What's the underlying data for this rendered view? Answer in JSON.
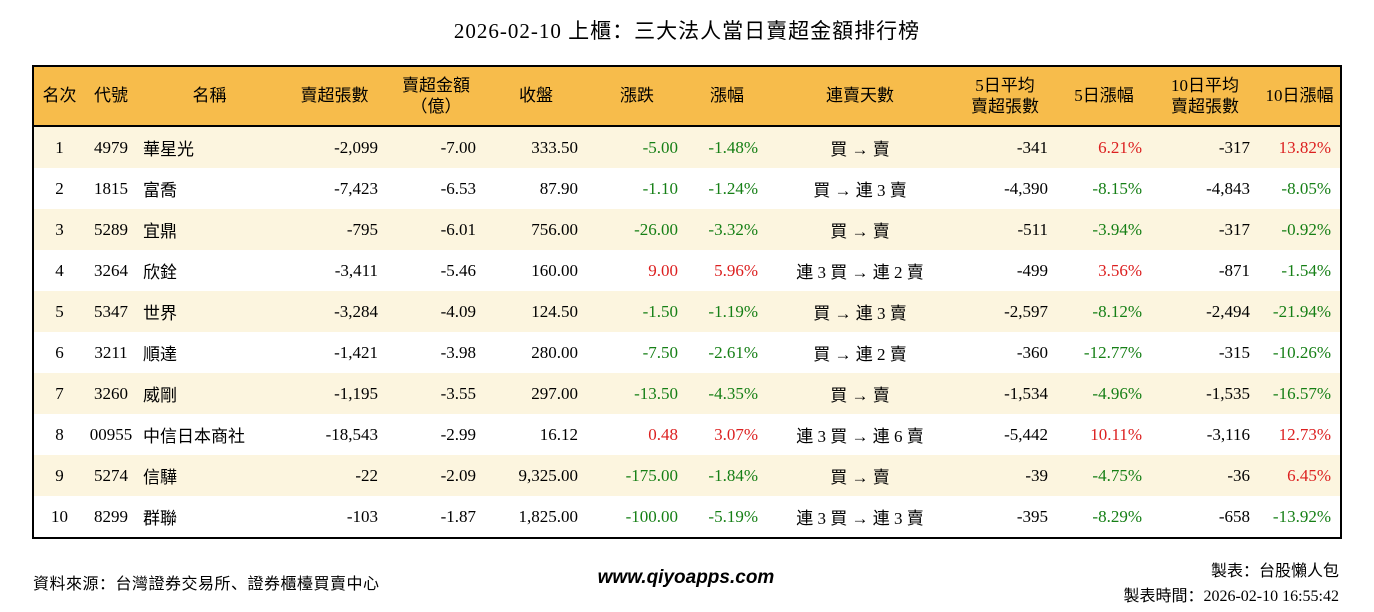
{
  "title": "2026-02-10 上櫃：三大法人當日賣超金額排行榜",
  "colors": {
    "header_bg": "#F7BC4B",
    "row_stripe": "#FCF5DF",
    "up_red": "#DC1F1F",
    "down_green": "#157F15",
    "border": "#000000"
  },
  "chart_data": {
    "type": "table",
    "title": "2026-02-10 上櫃：三大法人當日賣超金額排行榜",
    "columns": [
      "名次",
      "代號",
      "名稱",
      "賣超張數",
      "賣超金額\n（億）",
      "收盤",
      "漲跌",
      "漲幅",
      "連賣天數",
      "5日平均\n賣超張數",
      "5日漲幅",
      "10日平均\n賣超張數",
      "10日漲幅"
    ],
    "column_keys": [
      "rank",
      "code",
      "name",
      "net-sell-volume",
      "net-sell-amount",
      "close",
      "change",
      "change-pct",
      "streak",
      "avg5-net-sell-volume",
      "pct5",
      "avg10-net-sell-volume",
      "pct10"
    ],
    "aligns": [
      "center",
      "center",
      "left",
      "right",
      "right",
      "right",
      "right",
      "right",
      "center",
      "right",
      "right",
      "right",
      "right"
    ],
    "rows": [
      [
        {
          "t": "1",
          "c": "k"
        },
        {
          "t": "4979",
          "c": "k"
        },
        {
          "t": "華星光",
          "c": "k"
        },
        {
          "t": "-2,099",
          "c": "k"
        },
        {
          "t": "-7.00",
          "c": "k"
        },
        {
          "t": "333.50",
          "c": "k"
        },
        {
          "t": "-5.00",
          "c": "g"
        },
        {
          "t": "-1.48%",
          "c": "g"
        },
        {
          "t": "買 → 賣",
          "c": "k"
        },
        {
          "t": "-341",
          "c": "k"
        },
        {
          "t": "6.21%",
          "c": "r"
        },
        {
          "t": "-317",
          "c": "k"
        },
        {
          "t": "13.82%",
          "c": "r"
        }
      ],
      [
        {
          "t": "2",
          "c": "k"
        },
        {
          "t": "1815",
          "c": "k"
        },
        {
          "t": "富喬",
          "c": "k"
        },
        {
          "t": "-7,423",
          "c": "k"
        },
        {
          "t": "-6.53",
          "c": "k"
        },
        {
          "t": "87.90",
          "c": "k"
        },
        {
          "t": "-1.10",
          "c": "g"
        },
        {
          "t": "-1.24%",
          "c": "g"
        },
        {
          "t": "買 → 連 3 賣",
          "c": "k"
        },
        {
          "t": "-4,390",
          "c": "k"
        },
        {
          "t": "-8.15%",
          "c": "g"
        },
        {
          "t": "-4,843",
          "c": "k"
        },
        {
          "t": "-8.05%",
          "c": "g"
        }
      ],
      [
        {
          "t": "3",
          "c": "k"
        },
        {
          "t": "5289",
          "c": "k"
        },
        {
          "t": "宜鼎",
          "c": "k"
        },
        {
          "t": "-795",
          "c": "k"
        },
        {
          "t": "-6.01",
          "c": "k"
        },
        {
          "t": "756.00",
          "c": "k"
        },
        {
          "t": "-26.00",
          "c": "g"
        },
        {
          "t": "-3.32%",
          "c": "g"
        },
        {
          "t": "買 → 賣",
          "c": "k"
        },
        {
          "t": "-511",
          "c": "k"
        },
        {
          "t": "-3.94%",
          "c": "g"
        },
        {
          "t": "-317",
          "c": "k"
        },
        {
          "t": "-0.92%",
          "c": "g"
        }
      ],
      [
        {
          "t": "4",
          "c": "k"
        },
        {
          "t": "3264",
          "c": "k"
        },
        {
          "t": "欣銓",
          "c": "k"
        },
        {
          "t": "-3,411",
          "c": "k"
        },
        {
          "t": "-5.46",
          "c": "k"
        },
        {
          "t": "160.00",
          "c": "k"
        },
        {
          "t": "9.00",
          "c": "r"
        },
        {
          "t": "5.96%",
          "c": "r"
        },
        {
          "t": "連 3 買 → 連 2 賣",
          "c": "k"
        },
        {
          "t": "-499",
          "c": "k"
        },
        {
          "t": "3.56%",
          "c": "r"
        },
        {
          "t": "-871",
          "c": "k"
        },
        {
          "t": "-1.54%",
          "c": "g"
        }
      ],
      [
        {
          "t": "5",
          "c": "k"
        },
        {
          "t": "5347",
          "c": "k"
        },
        {
          "t": "世界",
          "c": "k"
        },
        {
          "t": "-3,284",
          "c": "k"
        },
        {
          "t": "-4.09",
          "c": "k"
        },
        {
          "t": "124.50",
          "c": "k"
        },
        {
          "t": "-1.50",
          "c": "g"
        },
        {
          "t": "-1.19%",
          "c": "g"
        },
        {
          "t": "買 → 連 3 賣",
          "c": "k"
        },
        {
          "t": "-2,597",
          "c": "k"
        },
        {
          "t": "-8.12%",
          "c": "g"
        },
        {
          "t": "-2,494",
          "c": "k"
        },
        {
          "t": "-21.94%",
          "c": "g"
        }
      ],
      [
        {
          "t": "6",
          "c": "k"
        },
        {
          "t": "3211",
          "c": "k"
        },
        {
          "t": "順達",
          "c": "k"
        },
        {
          "t": "-1,421",
          "c": "k"
        },
        {
          "t": "-3.98",
          "c": "k"
        },
        {
          "t": "280.00",
          "c": "k"
        },
        {
          "t": "-7.50",
          "c": "g"
        },
        {
          "t": "-2.61%",
          "c": "g"
        },
        {
          "t": "買 → 連 2 賣",
          "c": "k"
        },
        {
          "t": "-360",
          "c": "k"
        },
        {
          "t": "-12.77%",
          "c": "g"
        },
        {
          "t": "-315",
          "c": "k"
        },
        {
          "t": "-10.26%",
          "c": "g"
        }
      ],
      [
        {
          "t": "7",
          "c": "k"
        },
        {
          "t": "3260",
          "c": "k"
        },
        {
          "t": "威剛",
          "c": "k"
        },
        {
          "t": "-1,195",
          "c": "k"
        },
        {
          "t": "-3.55",
          "c": "k"
        },
        {
          "t": "297.00",
          "c": "k"
        },
        {
          "t": "-13.50",
          "c": "g"
        },
        {
          "t": "-4.35%",
          "c": "g"
        },
        {
          "t": "買 → 賣",
          "c": "k"
        },
        {
          "t": "-1,534",
          "c": "k"
        },
        {
          "t": "-4.96%",
          "c": "g"
        },
        {
          "t": "-1,535",
          "c": "k"
        },
        {
          "t": "-16.57%",
          "c": "g"
        }
      ],
      [
        {
          "t": "8",
          "c": "k"
        },
        {
          "t": "00955",
          "c": "k"
        },
        {
          "t": "中信日本商社",
          "c": "k"
        },
        {
          "t": "-18,543",
          "c": "k"
        },
        {
          "t": "-2.99",
          "c": "k"
        },
        {
          "t": "16.12",
          "c": "k"
        },
        {
          "t": "0.48",
          "c": "r"
        },
        {
          "t": "3.07%",
          "c": "r"
        },
        {
          "t": "連 3 買 → 連 6 賣",
          "c": "k"
        },
        {
          "t": "-5,442",
          "c": "k"
        },
        {
          "t": "10.11%",
          "c": "r"
        },
        {
          "t": "-3,116",
          "c": "k"
        },
        {
          "t": "12.73%",
          "c": "r"
        }
      ],
      [
        {
          "t": "9",
          "c": "k"
        },
        {
          "t": "5274",
          "c": "k"
        },
        {
          "t": "信驊",
          "c": "k"
        },
        {
          "t": "-22",
          "c": "k"
        },
        {
          "t": "-2.09",
          "c": "k"
        },
        {
          "t": "9,325.00",
          "c": "k"
        },
        {
          "t": "-175.00",
          "c": "g"
        },
        {
          "t": "-1.84%",
          "c": "g"
        },
        {
          "t": "買 → 賣",
          "c": "k"
        },
        {
          "t": "-39",
          "c": "k"
        },
        {
          "t": "-4.75%",
          "c": "g"
        },
        {
          "t": "-36",
          "c": "k"
        },
        {
          "t": "6.45%",
          "c": "r"
        }
      ],
      [
        {
          "t": "10",
          "c": "k"
        },
        {
          "t": "8299",
          "c": "k"
        },
        {
          "t": "群聯",
          "c": "k"
        },
        {
          "t": "-103",
          "c": "k"
        },
        {
          "t": "-1.87",
          "c": "k"
        },
        {
          "t": "1,825.00",
          "c": "k"
        },
        {
          "t": "-100.00",
          "c": "g"
        },
        {
          "t": "-5.19%",
          "c": "g"
        },
        {
          "t": "連 3 買 → 連 3 賣",
          "c": "k"
        },
        {
          "t": "-395",
          "c": "k"
        },
        {
          "t": "-8.29%",
          "c": "g"
        },
        {
          "t": "-658",
          "c": "k"
        },
        {
          "t": "-13.92%",
          "c": "g"
        }
      ]
    ]
  },
  "footer": {
    "source": "資料來源：台灣證券交易所、證券櫃檯買賣中心",
    "url": "www.qiyoapps.com",
    "author": "製表：台股懶人包",
    "generated_at": "製表時間：2026-02-10 16:55:42"
  }
}
